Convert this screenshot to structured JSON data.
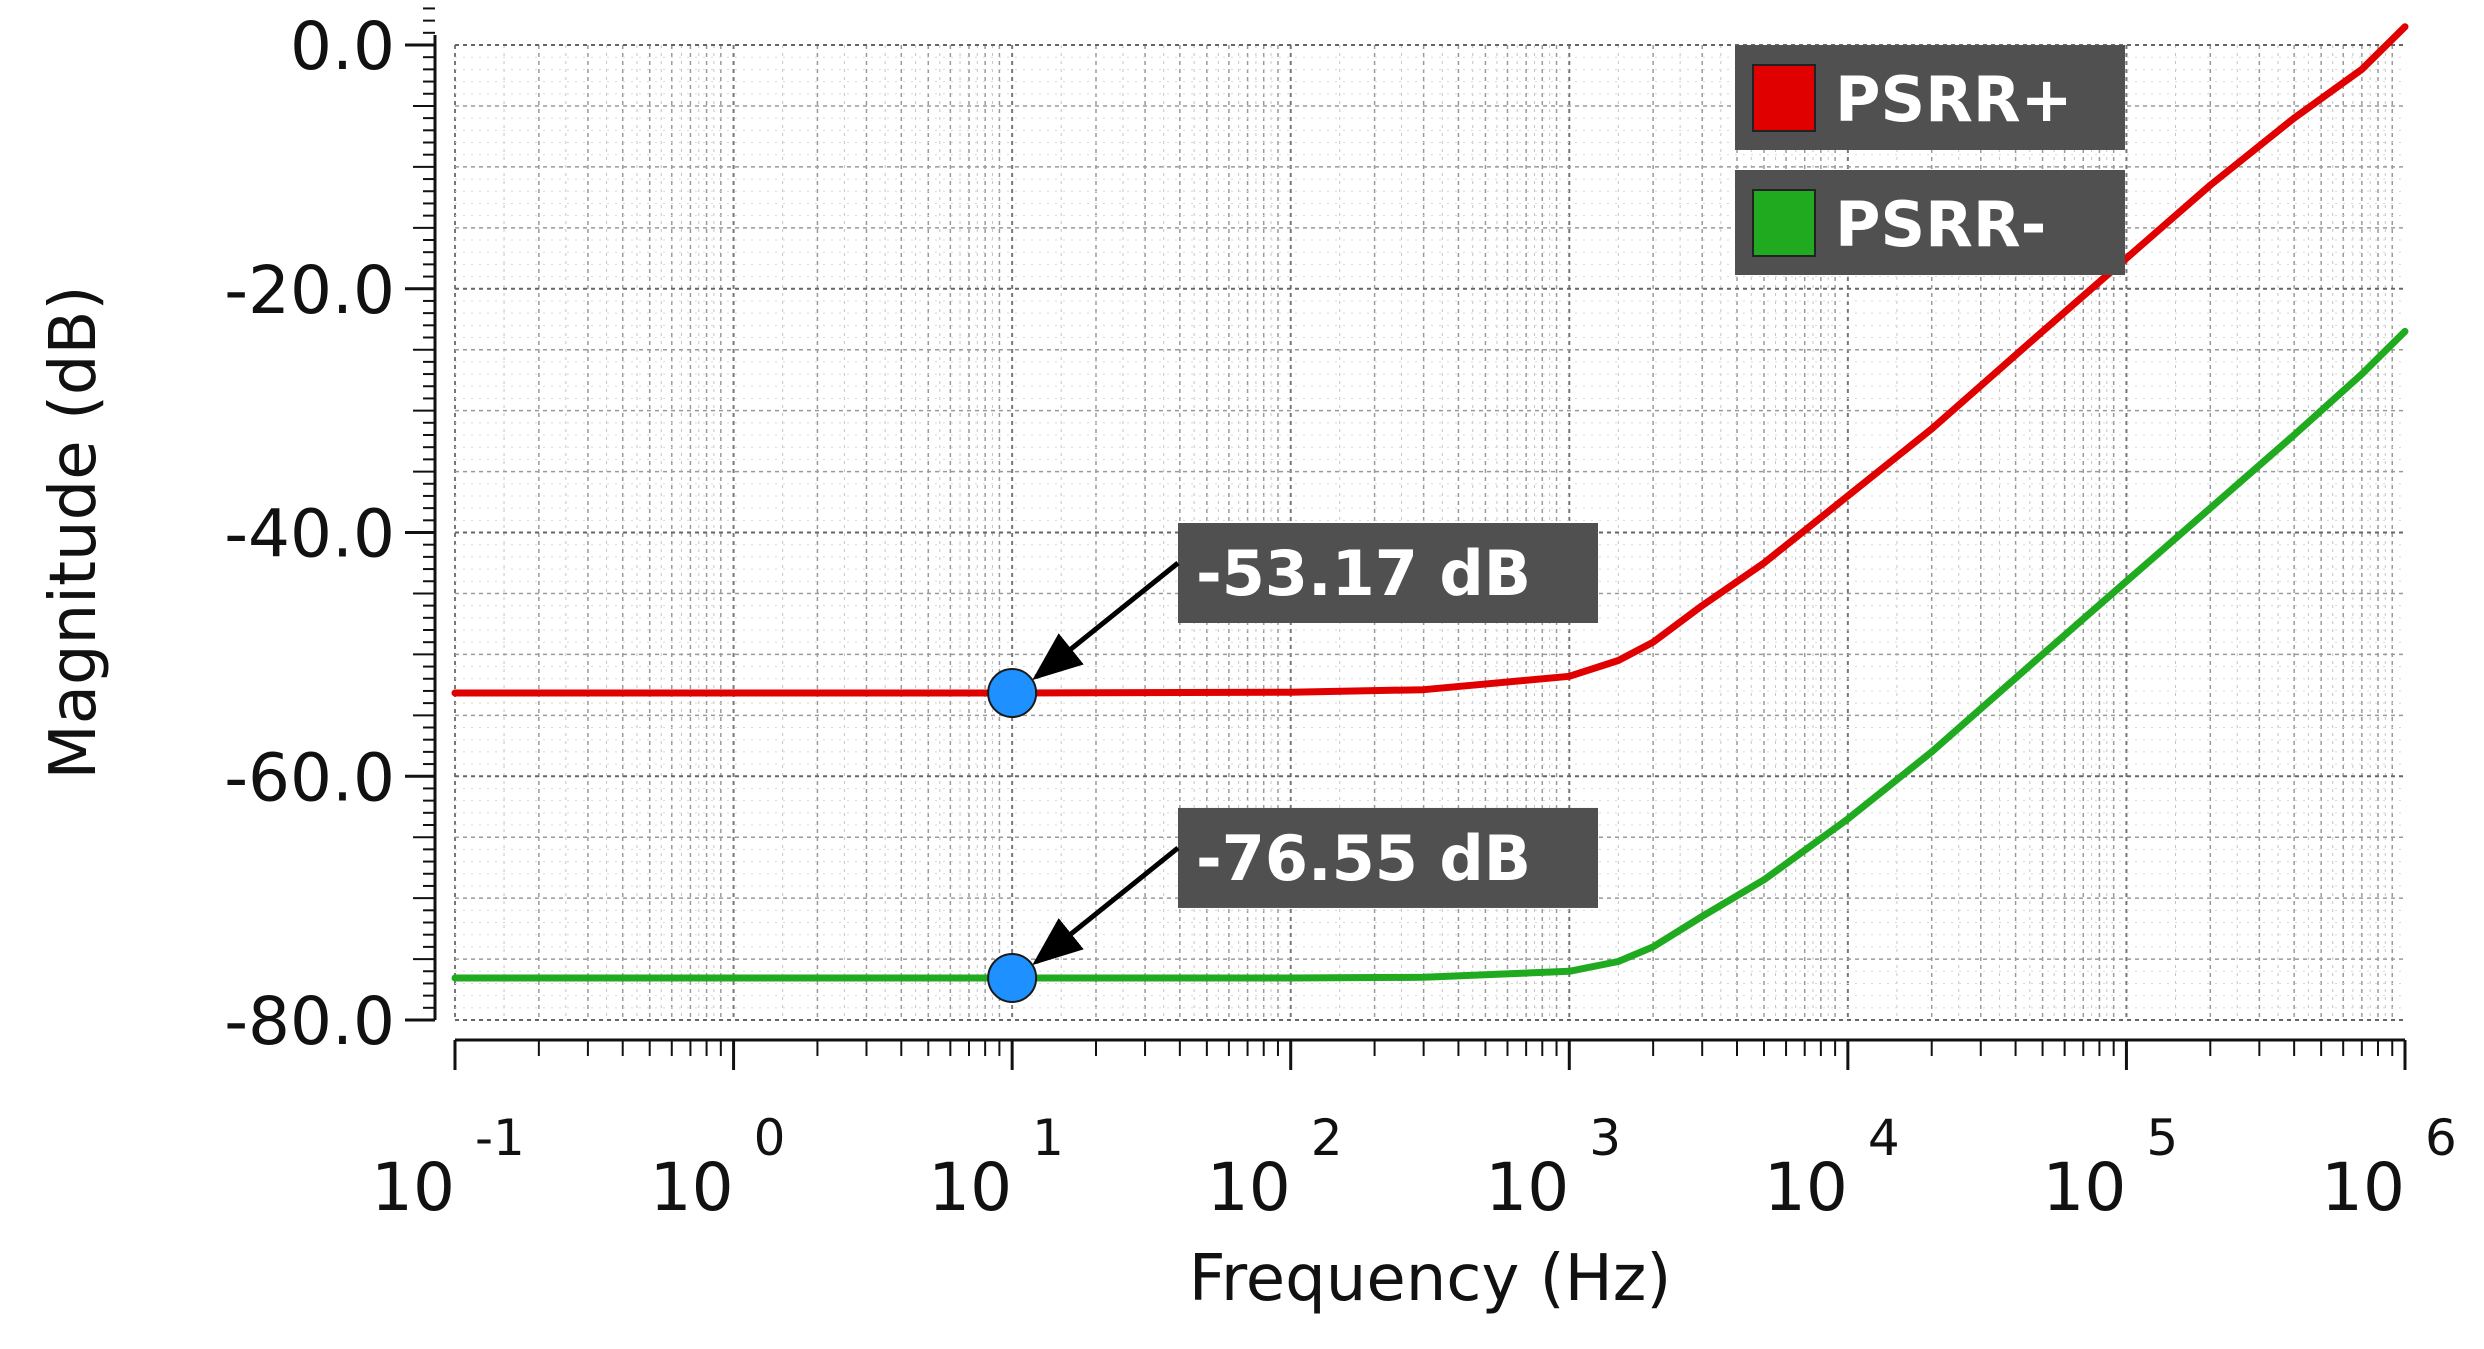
{
  "chart_data": {
    "type": "line",
    "xscale": "log",
    "xlim": [
      0.1,
      1000000
    ],
    "ylim": [
      -80,
      0
    ],
    "xlabel": "Frequency (Hz)",
    "ylabel": "Magnitude (dB)",
    "grid": true,
    "legend_position": "top-right",
    "y_ticks": [
      "0.0",
      "-20.0",
      "-40.0",
      "-60.0",
      "-80.0"
    ],
    "y_tick_values": [
      0,
      -20,
      -40,
      -60,
      -80
    ],
    "x_ticks": [
      {
        "base": "10",
        "exp": "-1"
      },
      {
        "base": "10",
        "exp": "0"
      },
      {
        "base": "10",
        "exp": "1"
      },
      {
        "base": "10",
        "exp": "2"
      },
      {
        "base": "10",
        "exp": "3"
      },
      {
        "base": "10",
        "exp": "4"
      },
      {
        "base": "10",
        "exp": "5"
      },
      {
        "base": "10",
        "exp": "6"
      }
    ],
    "x_tick_values": [
      0.1,
      1,
      10,
      100,
      1000,
      10000,
      100000,
      1000000
    ],
    "series": [
      {
        "name": "PSRR+",
        "color": "#e00000",
        "x": [
          0.1,
          1,
          10,
          100,
          300,
          1000,
          1500,
          2000,
          3000,
          5000,
          10000,
          20000,
          50000,
          100000,
          200000,
          400000,
          700000,
          1000000
        ],
        "y": [
          -53.17,
          -53.17,
          -53.17,
          -53.1,
          -52.9,
          -51.8,
          -50.5,
          -49.0,
          -46.0,
          -42.5,
          -37.0,
          -31.5,
          -23.5,
          -17.5,
          -11.5,
          -6.0,
          -2.0,
          1.5
        ]
      },
      {
        "name": "PSRR-",
        "color": "#1faa1f",
        "x": [
          0.1,
          1,
          10,
          100,
          300,
          1000,
          1500,
          2000,
          3000,
          5000,
          10000,
          20000,
          50000,
          100000,
          200000,
          400000,
          700000,
          1000000
        ],
        "y": [
          -76.55,
          -76.55,
          -76.55,
          -76.55,
          -76.5,
          -76.0,
          -75.2,
          -74.0,
          -71.5,
          -68.5,
          -63.5,
          -58.0,
          -50.0,
          -44.0,
          -38.0,
          -32.0,
          -27.0,
          -23.5
        ]
      }
    ],
    "annotations": [
      {
        "text": "-53.17 dB",
        "x": 10,
        "y": -53.17
      },
      {
        "text": "-76.55 dB",
        "x": 10,
        "y": -76.55
      }
    ],
    "marker_color": "#1e90ff"
  }
}
